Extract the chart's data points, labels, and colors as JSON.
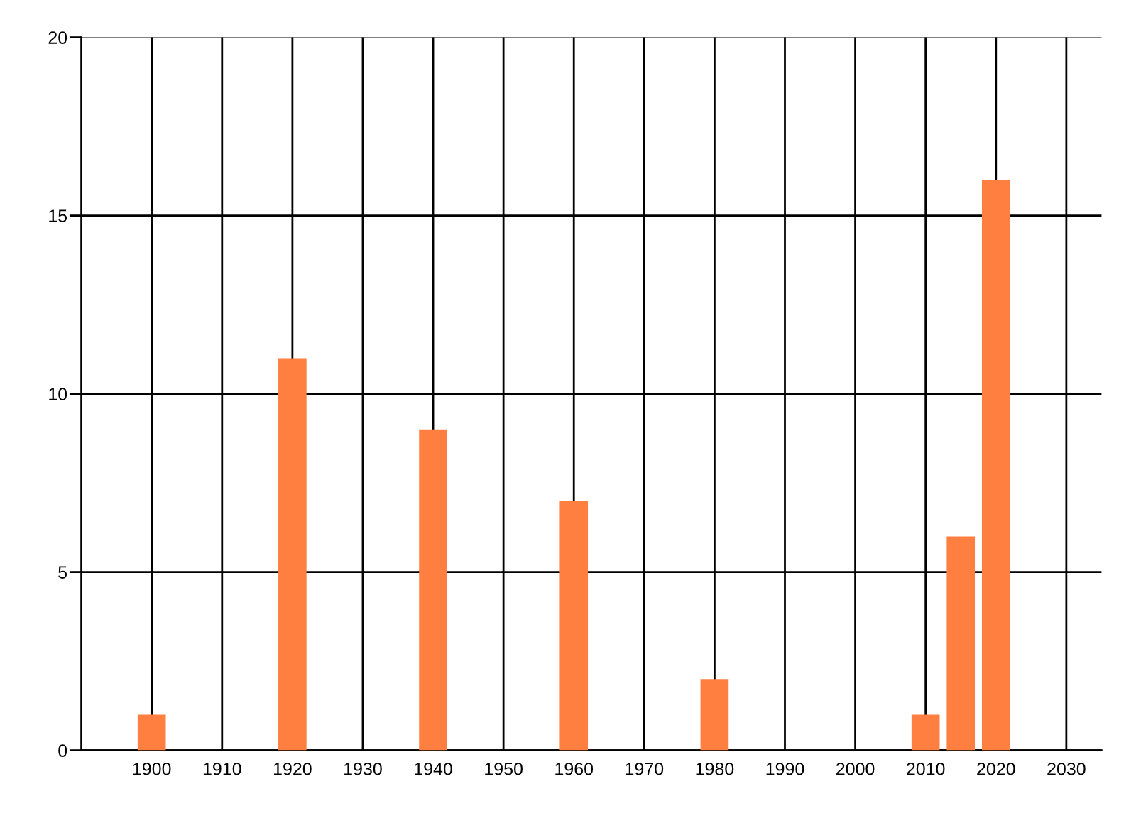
{
  "chart_data": {
    "type": "bar",
    "x": [
      1900,
      1920,
      1940,
      1960,
      1980,
      2010,
      2015,
      2020
    ],
    "values": [
      1,
      11,
      9,
      7,
      2,
      1,
      6,
      16
    ],
    "color": "#ff7f41",
    "xlim": [
      1890,
      2035
    ],
    "xticks": [
      1900,
      1910,
      1920,
      1930,
      1940,
      1950,
      1960,
      1970,
      1980,
      1990,
      2000,
      2010,
      2020,
      2030
    ],
    "ylim": [
      0,
      20
    ],
    "yticks": [
      0,
      5,
      10,
      15,
      20
    ],
    "grid": true
  }
}
